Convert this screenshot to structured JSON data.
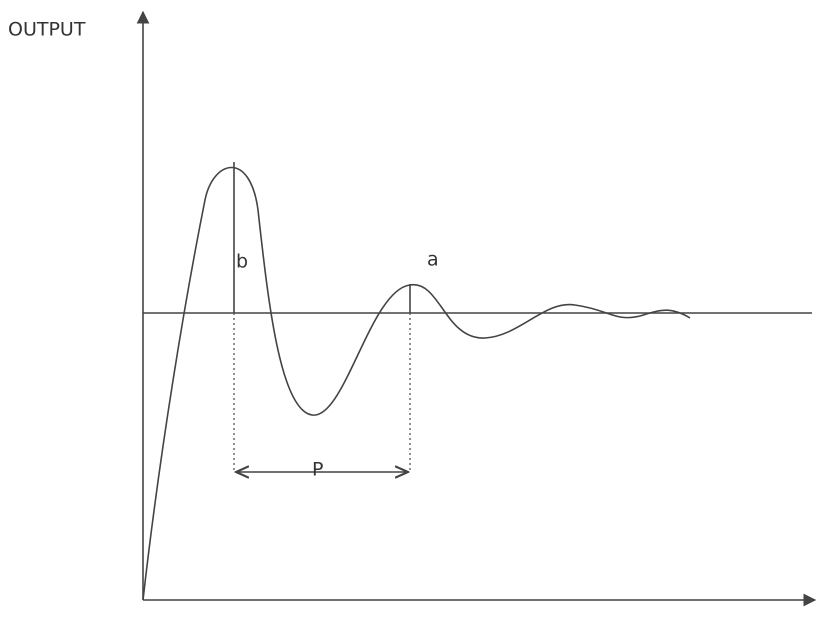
{
  "axis": {
    "y_label": "OUTPUT"
  },
  "labels": {
    "b": "b",
    "a": "a",
    "period": "P"
  }
}
